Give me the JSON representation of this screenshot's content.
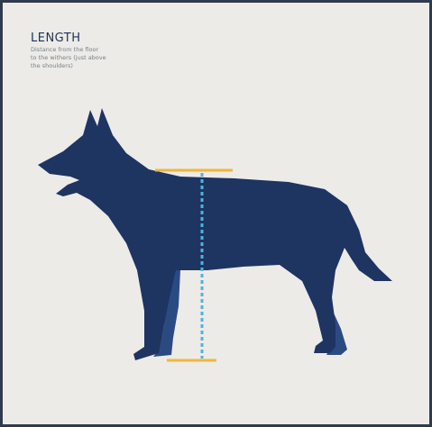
{
  "header": {
    "title": "LENGTH",
    "description": [
      "Distance from the floor",
      "to the withers (just above",
      "the shoulders)"
    ]
  }
}
